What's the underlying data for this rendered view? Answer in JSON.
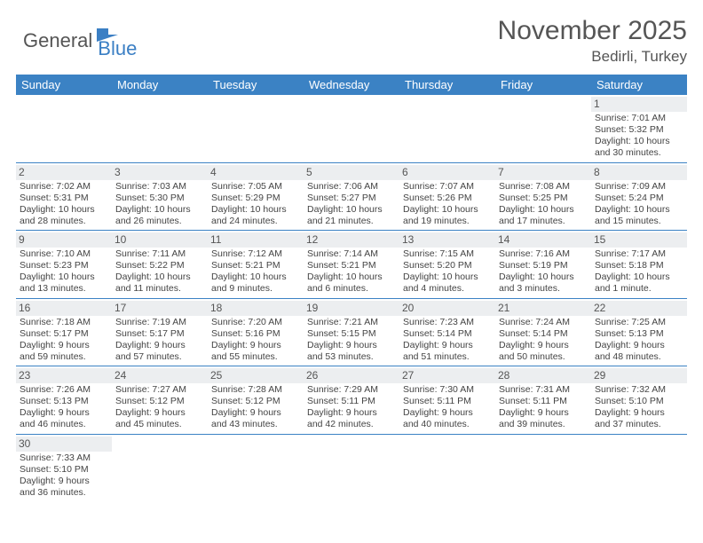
{
  "logo": {
    "text1": "General",
    "text2": "Blue"
  },
  "title": {
    "month": "November 2025",
    "location": "Bedirli, Turkey"
  },
  "colors": {
    "header_bg": "#3b82c4",
    "header_text": "#ffffff",
    "daynum_bg": "#eceef0",
    "week_border": "#3b82c4",
    "logo_blue": "#3b7fc4",
    "logo_gray": "#555555"
  },
  "day_names": [
    "Sunday",
    "Monday",
    "Tuesday",
    "Wednesday",
    "Thursday",
    "Friday",
    "Saturday"
  ],
  "weeks": [
    [
      {
        "blank": true
      },
      {
        "blank": true
      },
      {
        "blank": true
      },
      {
        "blank": true
      },
      {
        "blank": true
      },
      {
        "blank": true
      },
      {
        "day": "1",
        "sunrise": "Sunrise: 7:01 AM",
        "sunset": "Sunset: 5:32 PM",
        "dl1": "Daylight: 10 hours",
        "dl2": "and 30 minutes."
      }
    ],
    [
      {
        "day": "2",
        "sunrise": "Sunrise: 7:02 AM",
        "sunset": "Sunset: 5:31 PM",
        "dl1": "Daylight: 10 hours",
        "dl2": "and 28 minutes."
      },
      {
        "day": "3",
        "sunrise": "Sunrise: 7:03 AM",
        "sunset": "Sunset: 5:30 PM",
        "dl1": "Daylight: 10 hours",
        "dl2": "and 26 minutes."
      },
      {
        "day": "4",
        "sunrise": "Sunrise: 7:05 AM",
        "sunset": "Sunset: 5:29 PM",
        "dl1": "Daylight: 10 hours",
        "dl2": "and 24 minutes."
      },
      {
        "day": "5",
        "sunrise": "Sunrise: 7:06 AM",
        "sunset": "Sunset: 5:27 PM",
        "dl1": "Daylight: 10 hours",
        "dl2": "and 21 minutes."
      },
      {
        "day": "6",
        "sunrise": "Sunrise: 7:07 AM",
        "sunset": "Sunset: 5:26 PM",
        "dl1": "Daylight: 10 hours",
        "dl2": "and 19 minutes."
      },
      {
        "day": "7",
        "sunrise": "Sunrise: 7:08 AM",
        "sunset": "Sunset: 5:25 PM",
        "dl1": "Daylight: 10 hours",
        "dl2": "and 17 minutes."
      },
      {
        "day": "8",
        "sunrise": "Sunrise: 7:09 AM",
        "sunset": "Sunset: 5:24 PM",
        "dl1": "Daylight: 10 hours",
        "dl2": "and 15 minutes."
      }
    ],
    [
      {
        "day": "9",
        "sunrise": "Sunrise: 7:10 AM",
        "sunset": "Sunset: 5:23 PM",
        "dl1": "Daylight: 10 hours",
        "dl2": "and 13 minutes."
      },
      {
        "day": "10",
        "sunrise": "Sunrise: 7:11 AM",
        "sunset": "Sunset: 5:22 PM",
        "dl1": "Daylight: 10 hours",
        "dl2": "and 11 minutes."
      },
      {
        "day": "11",
        "sunrise": "Sunrise: 7:12 AM",
        "sunset": "Sunset: 5:21 PM",
        "dl1": "Daylight: 10 hours",
        "dl2": "and 9 minutes."
      },
      {
        "day": "12",
        "sunrise": "Sunrise: 7:14 AM",
        "sunset": "Sunset: 5:21 PM",
        "dl1": "Daylight: 10 hours",
        "dl2": "and 6 minutes."
      },
      {
        "day": "13",
        "sunrise": "Sunrise: 7:15 AM",
        "sunset": "Sunset: 5:20 PM",
        "dl1": "Daylight: 10 hours",
        "dl2": "and 4 minutes."
      },
      {
        "day": "14",
        "sunrise": "Sunrise: 7:16 AM",
        "sunset": "Sunset: 5:19 PM",
        "dl1": "Daylight: 10 hours",
        "dl2": "and 3 minutes."
      },
      {
        "day": "15",
        "sunrise": "Sunrise: 7:17 AM",
        "sunset": "Sunset: 5:18 PM",
        "dl1": "Daylight: 10 hours",
        "dl2": "and 1 minute."
      }
    ],
    [
      {
        "day": "16",
        "sunrise": "Sunrise: 7:18 AM",
        "sunset": "Sunset: 5:17 PM",
        "dl1": "Daylight: 9 hours",
        "dl2": "and 59 minutes."
      },
      {
        "day": "17",
        "sunrise": "Sunrise: 7:19 AM",
        "sunset": "Sunset: 5:17 PM",
        "dl1": "Daylight: 9 hours",
        "dl2": "and 57 minutes."
      },
      {
        "day": "18",
        "sunrise": "Sunrise: 7:20 AM",
        "sunset": "Sunset: 5:16 PM",
        "dl1": "Daylight: 9 hours",
        "dl2": "and 55 minutes."
      },
      {
        "day": "19",
        "sunrise": "Sunrise: 7:21 AM",
        "sunset": "Sunset: 5:15 PM",
        "dl1": "Daylight: 9 hours",
        "dl2": "and 53 minutes."
      },
      {
        "day": "20",
        "sunrise": "Sunrise: 7:23 AM",
        "sunset": "Sunset: 5:14 PM",
        "dl1": "Daylight: 9 hours",
        "dl2": "and 51 minutes."
      },
      {
        "day": "21",
        "sunrise": "Sunrise: 7:24 AM",
        "sunset": "Sunset: 5:14 PM",
        "dl1": "Daylight: 9 hours",
        "dl2": "and 50 minutes."
      },
      {
        "day": "22",
        "sunrise": "Sunrise: 7:25 AM",
        "sunset": "Sunset: 5:13 PM",
        "dl1": "Daylight: 9 hours",
        "dl2": "and 48 minutes."
      }
    ],
    [
      {
        "day": "23",
        "sunrise": "Sunrise: 7:26 AM",
        "sunset": "Sunset: 5:13 PM",
        "dl1": "Daylight: 9 hours",
        "dl2": "and 46 minutes."
      },
      {
        "day": "24",
        "sunrise": "Sunrise: 7:27 AM",
        "sunset": "Sunset: 5:12 PM",
        "dl1": "Daylight: 9 hours",
        "dl2": "and 45 minutes."
      },
      {
        "day": "25",
        "sunrise": "Sunrise: 7:28 AM",
        "sunset": "Sunset: 5:12 PM",
        "dl1": "Daylight: 9 hours",
        "dl2": "and 43 minutes."
      },
      {
        "day": "26",
        "sunrise": "Sunrise: 7:29 AM",
        "sunset": "Sunset: 5:11 PM",
        "dl1": "Daylight: 9 hours",
        "dl2": "and 42 minutes."
      },
      {
        "day": "27",
        "sunrise": "Sunrise: 7:30 AM",
        "sunset": "Sunset: 5:11 PM",
        "dl1": "Daylight: 9 hours",
        "dl2": "and 40 minutes."
      },
      {
        "day": "28",
        "sunrise": "Sunrise: 7:31 AM",
        "sunset": "Sunset: 5:11 PM",
        "dl1": "Daylight: 9 hours",
        "dl2": "and 39 minutes."
      },
      {
        "day": "29",
        "sunrise": "Sunrise: 7:32 AM",
        "sunset": "Sunset: 5:10 PM",
        "dl1": "Daylight: 9 hours",
        "dl2": "and 37 minutes."
      }
    ],
    [
      {
        "day": "30",
        "sunrise": "Sunrise: 7:33 AM",
        "sunset": "Sunset: 5:10 PM",
        "dl1": "Daylight: 9 hours",
        "dl2": "and 36 minutes."
      },
      {
        "blank": true
      },
      {
        "blank": true
      },
      {
        "blank": true
      },
      {
        "blank": true
      },
      {
        "blank": true
      },
      {
        "blank": true
      }
    ]
  ]
}
